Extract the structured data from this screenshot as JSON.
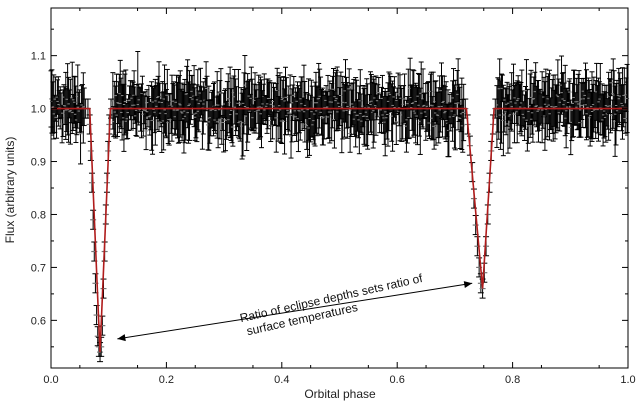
{
  "chart_data": {
    "type": "scatter",
    "title": "",
    "xlabel": "Orbital phase",
    "ylabel": "Flux (arbitrary units)",
    "xlim": [
      0.0,
      1.0
    ],
    "ylim": [
      0.51,
      1.19
    ],
    "x_ticks": [
      "0.0",
      "0.2",
      "0.4",
      "0.6",
      "0.8",
      "1.0"
    ],
    "x_tick_values": [
      0.0,
      0.2,
      0.4,
      0.6,
      0.8,
      1.0
    ],
    "y_ticks": [
      "0.6",
      "0.7",
      "0.8",
      "0.9",
      "1.0",
      "1.1"
    ],
    "y_tick_values": [
      0.6,
      0.7,
      0.8,
      0.9,
      1.0,
      1.1
    ],
    "grid": false,
    "legend": "none",
    "series": [
      {
        "kind": "observed flux with error bars",
        "color": "#000000",
        "baseline_flux": 1.0,
        "typical_error": 0.05,
        "points": [
          {
            "x": 0.06,
            "y": 1.0
          },
          {
            "x": 0.064,
            "y": 1.0
          },
          {
            "x": 0.067,
            "y": 0.97
          },
          {
            "x": 0.069,
            "y": 0.92
          },
          {
            "x": 0.071,
            "y": 0.86
          },
          {
            "x": 0.073,
            "y": 0.79
          },
          {
            "x": 0.075,
            "y": 0.73
          },
          {
            "x": 0.077,
            "y": 0.67
          },
          {
            "x": 0.079,
            "y": 0.61
          },
          {
            "x": 0.081,
            "y": 0.57
          },
          {
            "x": 0.083,
            "y": 0.55
          },
          {
            "x": 0.085,
            "y": 0.54
          },
          {
            "x": 0.087,
            "y": 0.55
          },
          {
            "x": 0.089,
            "y": 0.59
          },
          {
            "x": 0.091,
            "y": 0.66
          },
          {
            "x": 0.093,
            "y": 0.73
          },
          {
            "x": 0.095,
            "y": 0.8
          },
          {
            "x": 0.097,
            "y": 0.86
          },
          {
            "x": 0.099,
            "y": 0.92
          },
          {
            "x": 0.101,
            "y": 0.97
          },
          {
            "x": 0.104,
            "y": 1.0
          },
          {
            "x": 0.718,
            "y": 1.0
          },
          {
            "x": 0.722,
            "y": 0.97
          },
          {
            "x": 0.726,
            "y": 0.93
          },
          {
            "x": 0.73,
            "y": 0.88
          },
          {
            "x": 0.733,
            "y": 0.83
          },
          {
            "x": 0.736,
            "y": 0.78
          },
          {
            "x": 0.739,
            "y": 0.74
          },
          {
            "x": 0.742,
            "y": 0.7
          },
          {
            "x": 0.745,
            "y": 0.67
          },
          {
            "x": 0.748,
            "y": 0.66
          },
          {
            "x": 0.751,
            "y": 0.69
          },
          {
            "x": 0.754,
            "y": 0.74
          },
          {
            "x": 0.757,
            "y": 0.8
          },
          {
            "x": 0.76,
            "y": 0.86
          },
          {
            "x": 0.763,
            "y": 0.92
          },
          {
            "x": 0.766,
            "y": 0.97
          },
          {
            "x": 0.77,
            "y": 1.0
          }
        ]
      },
      {
        "kind": "model fit",
        "color": "#b01c1c",
        "points": [
          {
            "x": 0.0,
            "y": 1.0
          },
          {
            "x": 0.067,
            "y": 1.0
          },
          {
            "x": 0.085,
            "y": 0.54
          },
          {
            "x": 0.103,
            "y": 1.0
          },
          {
            "x": 0.72,
            "y": 1.0
          },
          {
            "x": 0.748,
            "y": 0.66
          },
          {
            "x": 0.768,
            "y": 1.0
          },
          {
            "x": 1.0,
            "y": 1.0
          }
        ]
      }
    ],
    "annotations": [
      {
        "text_lines": [
          "Ratio of eclipse depths sets ratio of",
          "surface temperatures"
        ],
        "arrow_from": {
          "x": 0.115,
          "y": 0.565
        },
        "arrow_to": {
          "x": 0.73,
          "y": 0.67
        }
      }
    ]
  }
}
